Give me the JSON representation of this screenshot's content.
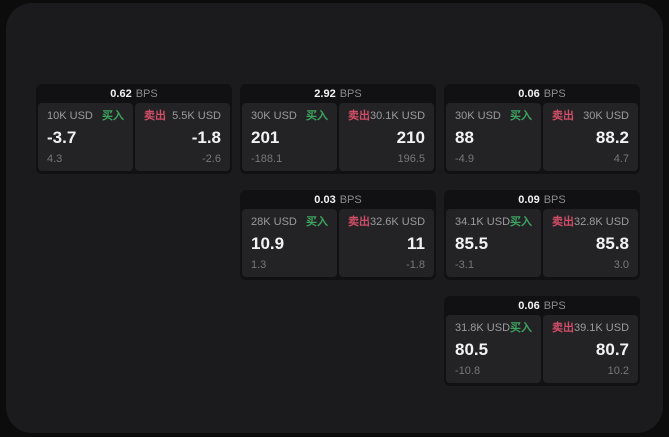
{
  "colors": {
    "page_bg": "#0c0c0d",
    "container_bg": "#1b1b1d",
    "card_bg": "#111113",
    "panel_bg": "#232326",
    "buy_green": "#3ea35f",
    "sell_red": "#cf4d66",
    "value_white": "#f2f2f3",
    "label_gray": "#9b9b9e",
    "sub_gray": "#77777a"
  },
  "cards": [
    {
      "bps_value": "0.62",
      "bps_unit": "BPS",
      "buy": {
        "amount": "10K USD",
        "side_label": "买入",
        "value": "-3.7",
        "delta": "4.3"
      },
      "sell": {
        "side_label": "卖出",
        "amount": "5.5K USD",
        "value": "-1.8",
        "delta": "-2.6"
      }
    },
    {
      "bps_value": "2.92",
      "bps_unit": "BPS",
      "buy": {
        "amount": "30K USD",
        "side_label": "买入",
        "value": "201",
        "delta": "-188.1"
      },
      "sell": {
        "side_label": "卖出",
        "amount": "30.1K USD",
        "value": "210",
        "delta": "196.5"
      }
    },
    {
      "bps_value": "0.06",
      "bps_unit": "BPS",
      "buy": {
        "amount": "30K USD",
        "side_label": "买入",
        "value": "88",
        "delta": "-4.9"
      },
      "sell": {
        "side_label": "卖出",
        "amount": "30K USD",
        "value": "88.2",
        "delta": "4.7"
      }
    },
    {
      "bps_value": "0.03",
      "bps_unit": "BPS",
      "buy": {
        "amount": "28K USD",
        "side_label": "买入",
        "value": "10.9",
        "delta": "1.3"
      },
      "sell": {
        "side_label": "卖出",
        "amount": "32.6K USD",
        "value": "11",
        "delta": "-1.8"
      }
    },
    {
      "bps_value": "0.09",
      "bps_unit": "BPS",
      "buy": {
        "amount": "34.1K USD",
        "side_label": "买入",
        "value": "85.5",
        "delta": "-3.1"
      },
      "sell": {
        "side_label": "卖出",
        "amount": "32.8K USD",
        "value": "85.8",
        "delta": "3.0"
      }
    },
    {
      "bps_value": "0.06",
      "bps_unit": "BPS",
      "buy": {
        "amount": "31.8K USD",
        "side_label": "买入",
        "value": "80.5",
        "delta": "-10.8"
      },
      "sell": {
        "side_label": "卖出",
        "amount": "39.1K USD",
        "value": "80.7",
        "delta": "10.2"
      }
    }
  ]
}
